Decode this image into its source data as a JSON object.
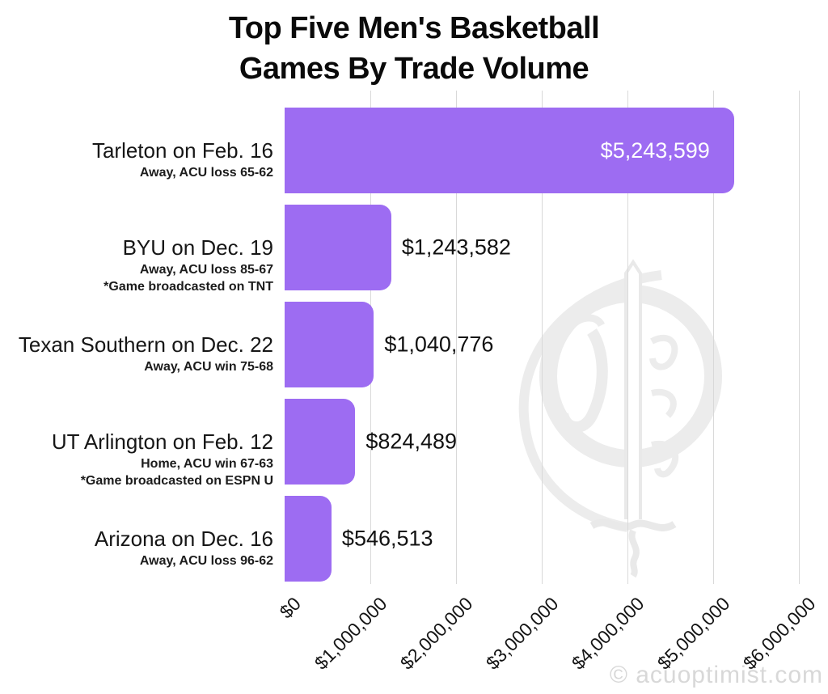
{
  "title": {
    "line1": "Top Five Men's Basketball",
    "line2": "Games By Trade Volume"
  },
  "chart_data": {
    "type": "bar",
    "orientation": "horizontal",
    "title": "Top Five Men's Basketball Games By Trade Volume",
    "bars": [
      {
        "label": "Tarleton on Feb. 16",
        "sublabels": [
          "Away, ACU loss 65-62"
        ],
        "value": 5243599,
        "value_label": "$5,243,599",
        "value_label_position": "inside"
      },
      {
        "label": "BYU on Dec. 19",
        "sublabels": [
          "Away, ACU loss 85-67",
          "*Game broadcasted on TNT"
        ],
        "value": 1243582,
        "value_label": "$1,243,582",
        "value_label_position": "outside"
      },
      {
        "label": "Texan Southern on Dec. 22",
        "sublabels": [
          "Away, ACU win 75-68"
        ],
        "value": 1040776,
        "value_label": "$1,040,776",
        "value_label_position": "outside"
      },
      {
        "label": "UT Arlington on Feb. 12",
        "sublabels": [
          "Home, ACU win 67-63",
          "*Game broadcasted on ESPN U"
        ],
        "value": 824489,
        "value_label": "$824,489",
        "value_label_position": "outside"
      },
      {
        "label": "Arizona on Dec. 16",
        "sublabels": [
          "Away, ACU loss 96-62"
        ],
        "value": 546513,
        "value_label": "$546,513",
        "value_label_position": "outside"
      }
    ],
    "x_axis": {
      "ticks": [
        "$0",
        "$1,000,000",
        "$2,000,000",
        "$3,000,000",
        "$4,000,000",
        "$5,000,000",
        "$6,000,000"
      ],
      "tick_values": [
        0,
        1000000,
        2000000,
        3000000,
        4000000,
        5000000,
        6000000
      ],
      "xlim": [
        0,
        6000000
      ],
      "rotation_deg": 45,
      "grid": true
    },
    "legend": "none",
    "bar_color": "#9d6cf2",
    "gridline_color": "#d9d9d9",
    "value_label_inside_color": "#ffffff",
    "value_label_outside_color": "#111111"
  },
  "watermark": {
    "credit": "© acuoptimist.com",
    "credit_color": "#d8d8d8",
    "logo_name": "optimist-sword-crest-logo",
    "logo_color": "#ececec"
  }
}
